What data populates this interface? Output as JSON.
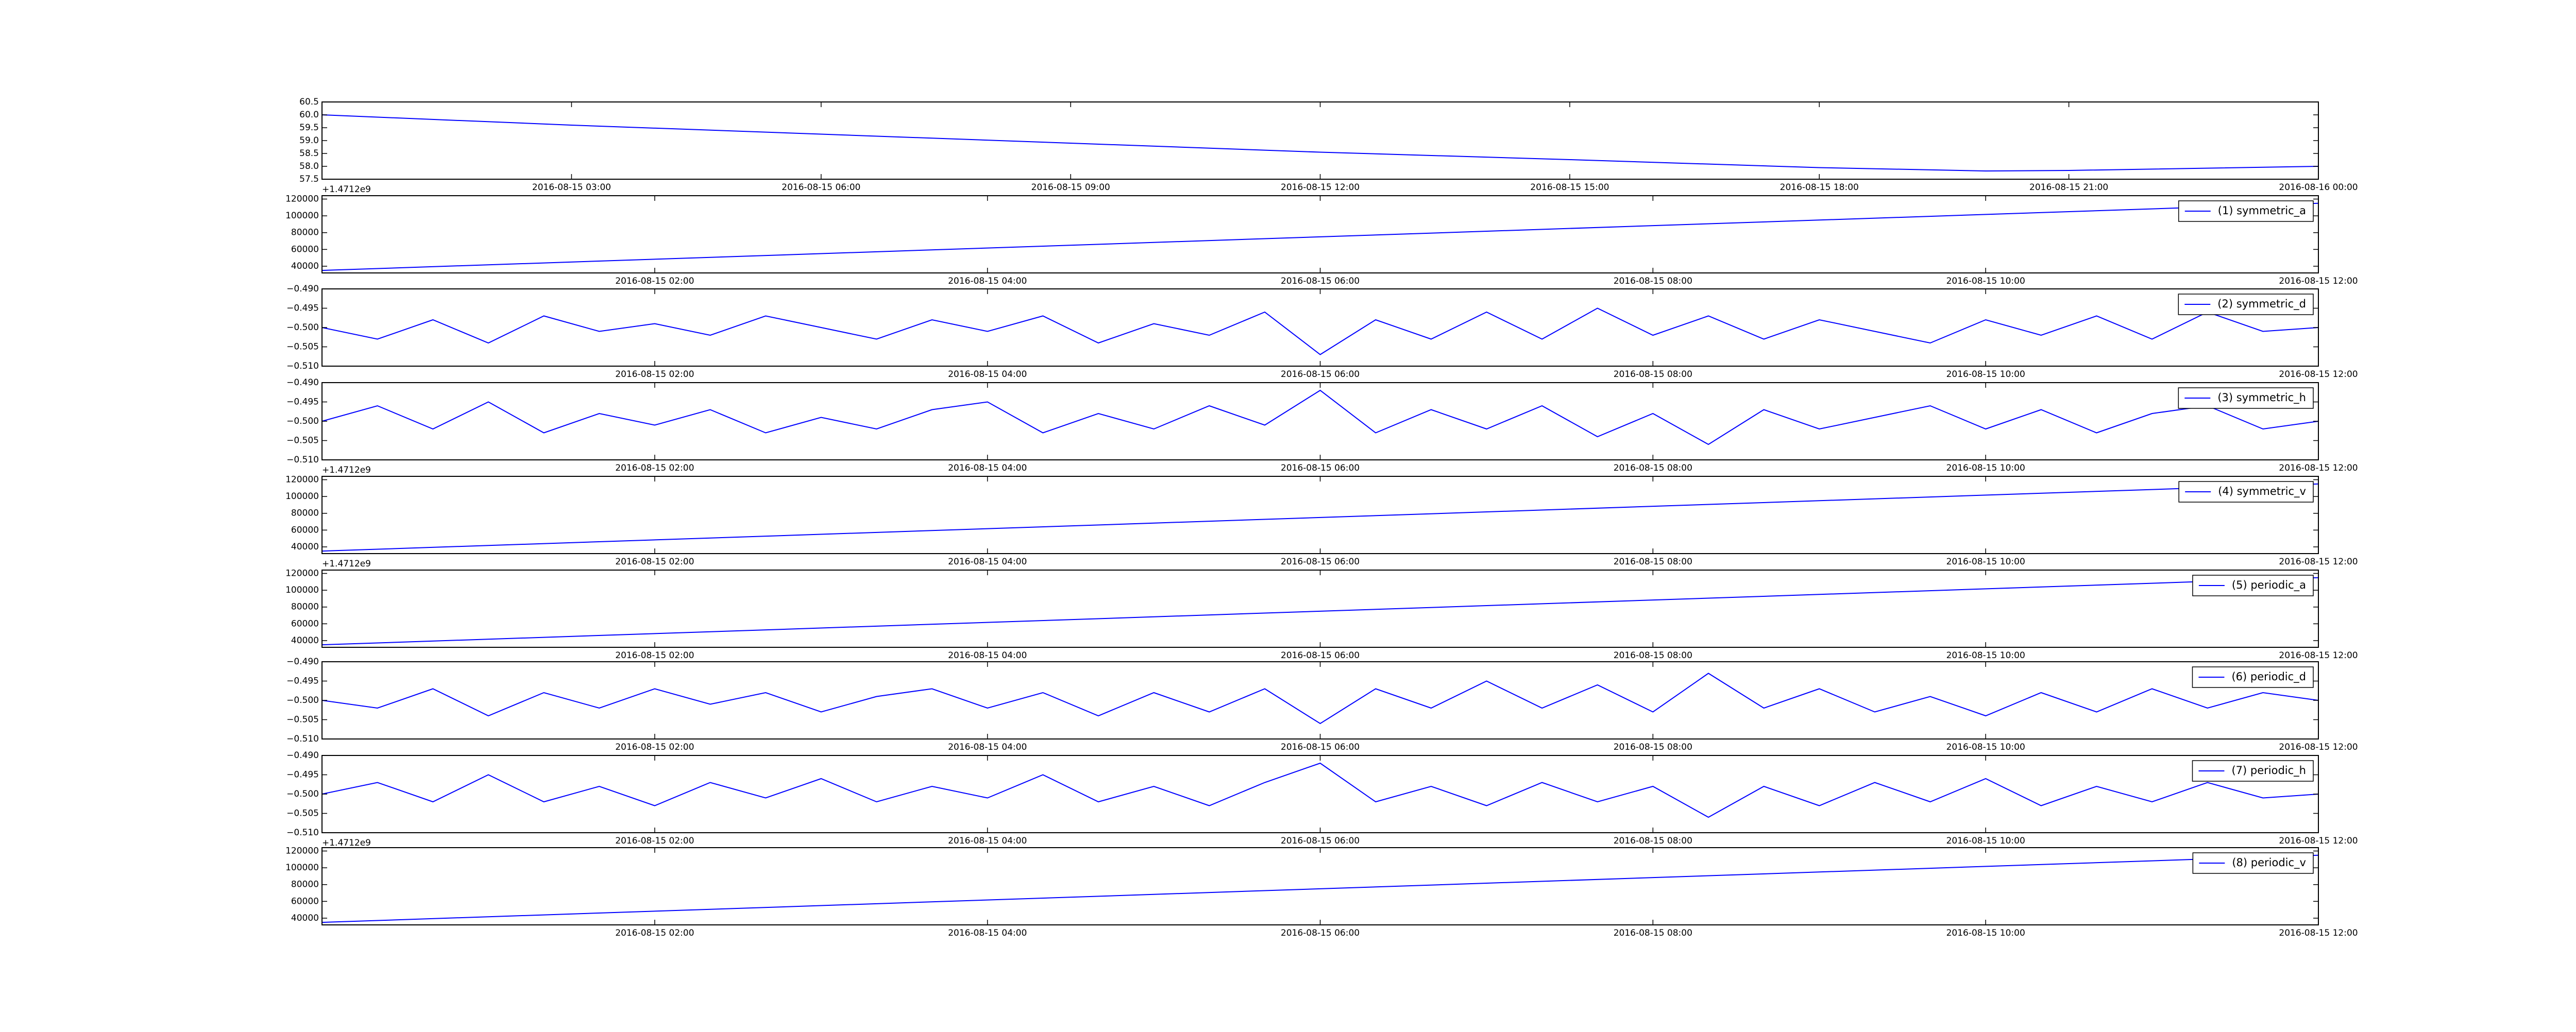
{
  "chart_data": [
    {
      "type": "line",
      "offset_label": "+1.4712e9",
      "x": [
        "2016-08-15 00:00",
        "2016-08-15 03:00",
        "2016-08-15 06:00",
        "2016-08-15 09:00",
        "2016-08-15 12:00",
        "2016-08-15 15:00",
        "2016-08-15 18:00",
        "2016-08-15 20:00",
        "2016-08-15 21:00",
        "2016-08-16 00:00"
      ],
      "series": [
        {
          "color": "#0000ff",
          "values": [
            60.0,
            59.6,
            59.25,
            58.9,
            58.55,
            58.26,
            57.95,
            57.82,
            57.84,
            58.0
          ]
        }
      ],
      "xlim": [
        "2016-08-15 00:00",
        "2016-08-16 00:00"
      ],
      "xticks": [
        "2016-08-15 03:00",
        "2016-08-15 06:00",
        "2016-08-15 09:00",
        "2016-08-15 12:00",
        "2016-08-15 15:00",
        "2016-08-15 18:00",
        "2016-08-15 21:00",
        "2016-08-16 00:00"
      ],
      "ylim": [
        57.5,
        60.5
      ],
      "yticks": [
        57.5,
        {
          "value": 58,
          "label": "58.0"
        },
        58.5,
        {
          "value": 59,
          "label": "59.0"
        },
        59.5,
        {
          "value": 60,
          "label": "60.0"
        },
        60.5
      ]
    },
    {
      "type": "line",
      "x": [
        "2016-08-15 00:00",
        "2016-08-15 12:00"
      ],
      "series": [
        {
          "name": "(1) symmetric_a",
          "color": "#0000ff",
          "values": [
            35000,
            115000
          ]
        }
      ],
      "xlim": [
        "2016-08-15 00:00",
        "2016-08-15 12:00"
      ],
      "xticks": [
        "2016-08-15 02:00",
        "2016-08-15 04:00",
        "2016-08-15 06:00",
        "2016-08-15 08:00",
        "2016-08-15 10:00",
        "2016-08-15 12:00"
      ],
      "ylim": [
        32000,
        124000
      ],
      "yticks": [
        40000,
        60000,
        80000,
        100000,
        120000
      ],
      "legend": "upper right"
    },
    {
      "type": "line",
      "x": [
        "2016-08-15 00:00",
        "2016-08-15 00:20",
        "2016-08-15 00:40",
        "2016-08-15 01:00",
        "2016-08-15 01:20",
        "2016-08-15 01:40",
        "2016-08-15 02:00",
        "2016-08-15 02:20",
        "2016-08-15 02:40",
        "2016-08-15 03:00",
        "2016-08-15 03:20",
        "2016-08-15 03:40",
        "2016-08-15 04:00",
        "2016-08-15 04:20",
        "2016-08-15 04:40",
        "2016-08-15 05:00",
        "2016-08-15 05:20",
        "2016-08-15 05:40",
        "2016-08-15 06:00",
        "2016-08-15 06:20",
        "2016-08-15 06:40",
        "2016-08-15 07:00",
        "2016-08-15 07:20",
        "2016-08-15 07:40",
        "2016-08-15 08:00",
        "2016-08-15 08:20",
        "2016-08-15 08:40",
        "2016-08-15 09:00",
        "2016-08-15 09:20",
        "2016-08-15 09:40",
        "2016-08-15 10:00",
        "2016-08-15 10:20",
        "2016-08-15 10:40",
        "2016-08-15 11:00",
        "2016-08-15 11:20",
        "2016-08-15 11:40",
        "2016-08-15 12:00"
      ],
      "series": [
        {
          "name": "(2) symmetric_d",
          "color": "#0000ff",
          "values": [
            -0.5,
            -0.503,
            -0.498,
            -0.504,
            -0.497,
            -0.501,
            -0.499,
            -0.502,
            -0.497,
            -0.5,
            -0.503,
            -0.498,
            -0.501,
            -0.497,
            -0.504,
            -0.499,
            -0.502,
            -0.496,
            -0.507,
            -0.498,
            -0.503,
            -0.496,
            -0.503,
            -0.495,
            -0.502,
            -0.497,
            -0.503,
            -0.498,
            -0.501,
            -0.504,
            -0.498,
            -0.502,
            -0.497,
            -0.503,
            -0.496,
            -0.501,
            -0.5
          ]
        }
      ],
      "xlim": [
        "2016-08-15 00:00",
        "2016-08-15 12:00"
      ],
      "xticks": [
        "2016-08-15 02:00",
        "2016-08-15 04:00",
        "2016-08-15 06:00",
        "2016-08-15 08:00",
        "2016-08-15 10:00",
        "2016-08-15 12:00"
      ],
      "ylim": [
        -0.51,
        -0.49
      ],
      "yticks": [
        {
          "value": -0.51,
          "label": "−0.510"
        },
        {
          "value": -0.505,
          "label": "−0.505"
        },
        {
          "value": -0.5,
          "label": "−0.500"
        },
        {
          "value": -0.495,
          "label": "−0.495"
        },
        {
          "value": -0.49,
          "label": "−0.490"
        }
      ],
      "legend": "upper right"
    },
    {
      "type": "line",
      "offset_label": "+1.4712e9",
      "x": [
        "2016-08-15 00:00",
        "2016-08-15 00:20",
        "2016-08-15 00:40",
        "2016-08-15 01:00",
        "2016-08-15 01:20",
        "2016-08-15 01:40",
        "2016-08-15 02:00",
        "2016-08-15 02:20",
        "2016-08-15 02:40",
        "2016-08-15 03:00",
        "2016-08-15 03:20",
        "2016-08-15 03:40",
        "2016-08-15 04:00",
        "2016-08-15 04:20",
        "2016-08-15 04:40",
        "2016-08-15 05:00",
        "2016-08-15 05:20",
        "2016-08-15 05:40",
        "2016-08-15 06:00",
        "2016-08-15 06:20",
        "2016-08-15 06:40",
        "2016-08-15 07:00",
        "2016-08-15 07:20",
        "2016-08-15 07:40",
        "2016-08-15 08:00",
        "2016-08-15 08:20",
        "2016-08-15 08:40",
        "2016-08-15 09:00",
        "2016-08-15 09:20",
        "2016-08-15 09:40",
        "2016-08-15 10:00",
        "2016-08-15 10:20",
        "2016-08-15 10:40",
        "2016-08-15 11:00",
        "2016-08-15 11:20",
        "2016-08-15 11:40",
        "2016-08-15 12:00"
      ],
      "series": [
        {
          "name": "(3) symmetric_h",
          "color": "#0000ff",
          "values": [
            -0.5,
            -0.496,
            -0.502,
            -0.495,
            -0.503,
            -0.498,
            -0.501,
            -0.497,
            -0.503,
            -0.499,
            -0.502,
            -0.497,
            -0.495,
            -0.503,
            -0.498,
            -0.502,
            -0.496,
            -0.501,
            -0.492,
            -0.503,
            -0.497,
            -0.502,
            -0.496,
            -0.504,
            -0.498,
            -0.506,
            -0.497,
            -0.502,
            -0.499,
            -0.496,
            -0.502,
            -0.497,
            -0.503,
            -0.498,
            -0.496,
            -0.502,
            -0.5
          ]
        }
      ],
      "xlim": [
        "2016-08-15 00:00",
        "2016-08-15 12:00"
      ],
      "xticks": [
        "2016-08-15 02:00",
        "2016-08-15 04:00",
        "2016-08-15 06:00",
        "2016-08-15 08:00",
        "2016-08-15 10:00",
        "2016-08-15 12:00"
      ],
      "ylim": [
        -0.51,
        -0.49
      ],
      "yticks": [
        {
          "value": -0.51,
          "label": "−0.510"
        },
        {
          "value": -0.505,
          "label": "−0.505"
        },
        {
          "value": -0.5,
          "label": "−0.500"
        },
        {
          "value": -0.495,
          "label": "−0.495"
        },
        {
          "value": -0.49,
          "label": "−0.490"
        }
      ],
      "legend": "upper right"
    },
    {
      "type": "line",
      "offset_label": "+1.4712e9",
      "x": [
        "2016-08-15 00:00",
        "2016-08-15 12:00"
      ],
      "series": [
        {
          "name": "(4) symmetric_v",
          "color": "#0000ff",
          "values": [
            35000,
            115000
          ]
        }
      ],
      "xlim": [
        "2016-08-15 00:00",
        "2016-08-15 12:00"
      ],
      "xticks": [
        "2016-08-15 02:00",
        "2016-08-15 04:00",
        "2016-08-15 06:00",
        "2016-08-15 08:00",
        "2016-08-15 10:00",
        "2016-08-15 12:00"
      ],
      "ylim": [
        32000,
        124000
      ],
      "yticks": [
        40000,
        60000,
        80000,
        100000,
        120000
      ],
      "legend": "upper right"
    },
    {
      "type": "line",
      "x": [
        "2016-08-15 00:00",
        "2016-08-15 12:00"
      ],
      "series": [
        {
          "name": "(5) periodic_a",
          "color": "#0000ff",
          "values": [
            35000,
            115000
          ]
        }
      ],
      "xlim": [
        "2016-08-15 00:00",
        "2016-08-15 12:00"
      ],
      "xticks": [
        "2016-08-15 02:00",
        "2016-08-15 04:00",
        "2016-08-15 06:00",
        "2016-08-15 08:00",
        "2016-08-15 10:00",
        "2016-08-15 12:00"
      ],
      "ylim": [
        32000,
        124000
      ],
      "yticks": [
        40000,
        60000,
        80000,
        100000,
        120000
      ],
      "legend": "upper right"
    },
    {
      "type": "line",
      "x": [
        "2016-08-15 00:00",
        "2016-08-15 00:20",
        "2016-08-15 00:40",
        "2016-08-15 01:00",
        "2016-08-15 01:20",
        "2016-08-15 01:40",
        "2016-08-15 02:00",
        "2016-08-15 02:20",
        "2016-08-15 02:40",
        "2016-08-15 03:00",
        "2016-08-15 03:20",
        "2016-08-15 03:40",
        "2016-08-15 04:00",
        "2016-08-15 04:20",
        "2016-08-15 04:40",
        "2016-08-15 05:00",
        "2016-08-15 05:20",
        "2016-08-15 05:40",
        "2016-08-15 06:00",
        "2016-08-15 06:20",
        "2016-08-15 06:40",
        "2016-08-15 07:00",
        "2016-08-15 07:20",
        "2016-08-15 07:40",
        "2016-08-15 08:00",
        "2016-08-15 08:20",
        "2016-08-15 08:40",
        "2016-08-15 09:00",
        "2016-08-15 09:20",
        "2016-08-15 09:40",
        "2016-08-15 10:00",
        "2016-08-15 10:20",
        "2016-08-15 10:40",
        "2016-08-15 11:00",
        "2016-08-15 11:20",
        "2016-08-15 11:40",
        "2016-08-15 12:00"
      ],
      "series": [
        {
          "name": "(6) periodic_d",
          "color": "#0000ff",
          "values": [
            -0.5,
            -0.502,
            -0.497,
            -0.504,
            -0.498,
            -0.502,
            -0.497,
            -0.501,
            -0.498,
            -0.503,
            -0.499,
            -0.497,
            -0.502,
            -0.498,
            -0.504,
            -0.498,
            -0.503,
            -0.497,
            -0.506,
            -0.497,
            -0.502,
            -0.495,
            -0.502,
            -0.496,
            -0.503,
            -0.493,
            -0.502,
            -0.497,
            -0.503,
            -0.499,
            -0.504,
            -0.498,
            -0.503,
            -0.497,
            -0.502,
            -0.498,
            -0.5
          ]
        }
      ],
      "xlim": [
        "2016-08-15 00:00",
        "2016-08-15 12:00"
      ],
      "xticks": [
        "2016-08-15 02:00",
        "2016-08-15 04:00",
        "2016-08-15 06:00",
        "2016-08-15 08:00",
        "2016-08-15 10:00",
        "2016-08-15 12:00"
      ],
      "ylim": [
        -0.51,
        -0.49
      ],
      "yticks": [
        {
          "value": -0.51,
          "label": "−0.510"
        },
        {
          "value": -0.505,
          "label": "−0.505"
        },
        {
          "value": -0.5,
          "label": "−0.500"
        },
        {
          "value": -0.495,
          "label": "−0.495"
        },
        {
          "value": -0.49,
          "label": "−0.490"
        }
      ],
      "legend": "upper right"
    },
    {
      "type": "line",
      "offset_label": "+1.4712e9",
      "x": [
        "2016-08-15 00:00",
        "2016-08-15 00:20",
        "2016-08-15 00:40",
        "2016-08-15 01:00",
        "2016-08-15 01:20",
        "2016-08-15 01:40",
        "2016-08-15 02:00",
        "2016-08-15 02:20",
        "2016-08-15 02:40",
        "2016-08-15 03:00",
        "2016-08-15 03:20",
        "2016-08-15 03:40",
        "2016-08-15 04:00",
        "2016-08-15 04:20",
        "2016-08-15 04:40",
        "2016-08-15 05:00",
        "2016-08-15 05:20",
        "2016-08-15 05:40",
        "2016-08-15 06:00",
        "2016-08-15 06:20",
        "2016-08-15 06:40",
        "2016-08-15 07:00",
        "2016-08-15 07:20",
        "2016-08-15 07:40",
        "2016-08-15 08:00",
        "2016-08-15 08:20",
        "2016-08-15 08:40",
        "2016-08-15 09:00",
        "2016-08-15 09:20",
        "2016-08-15 09:40",
        "2016-08-15 10:00",
        "2016-08-15 10:20",
        "2016-08-15 10:40",
        "2016-08-15 11:00",
        "2016-08-15 11:20",
        "2016-08-15 11:40",
        "2016-08-15 12:00"
      ],
      "series": [
        {
          "name": "(7) periodic_h",
          "color": "#0000ff",
          "values": [
            -0.5,
            -0.497,
            -0.502,
            -0.495,
            -0.502,
            -0.498,
            -0.503,
            -0.497,
            -0.501,
            -0.496,
            -0.502,
            -0.498,
            -0.501,
            -0.495,
            -0.502,
            -0.498,
            -0.503,
            -0.497,
            -0.492,
            -0.502,
            -0.498,
            -0.503,
            -0.497,
            -0.502,
            -0.498,
            -0.506,
            -0.498,
            -0.503,
            -0.497,
            -0.502,
            -0.496,
            -0.503,
            -0.498,
            -0.502,
            -0.497,
            -0.501,
            -0.5
          ]
        }
      ],
      "xlim": [
        "2016-08-15 00:00",
        "2016-08-15 12:00"
      ],
      "xticks": [
        "2016-08-15 02:00",
        "2016-08-15 04:00",
        "2016-08-15 06:00",
        "2016-08-15 08:00",
        "2016-08-15 10:00",
        "2016-08-15 12:00"
      ],
      "ylim": [
        -0.51,
        -0.49
      ],
      "yticks": [
        {
          "value": -0.51,
          "label": "−0.510"
        },
        {
          "value": -0.505,
          "label": "−0.505"
        },
        {
          "value": -0.5,
          "label": "−0.500"
        },
        {
          "value": -0.495,
          "label": "−0.495"
        },
        {
          "value": -0.49,
          "label": "−0.490"
        }
      ],
      "legend": "upper right"
    },
    {
      "type": "line",
      "x": [
        "2016-08-15 00:00",
        "2016-08-15 12:00"
      ],
      "series": [
        {
          "name": "(8) periodic_v",
          "color": "#0000ff",
          "values": [
            35000,
            115000
          ]
        }
      ],
      "xlim": [
        "2016-08-15 00:00",
        "2016-08-15 12:00"
      ],
      "xticks": [
        "2016-08-15 02:00",
        "2016-08-15 04:00",
        "2016-08-15 06:00",
        "2016-08-15 08:00",
        "2016-08-15 10:00",
        "2016-08-15 12:00"
      ],
      "ylim": [
        32000,
        124000
      ],
      "yticks": [
        40000,
        60000,
        80000,
        100000,
        120000
      ],
      "legend": "upper right"
    }
  ]
}
